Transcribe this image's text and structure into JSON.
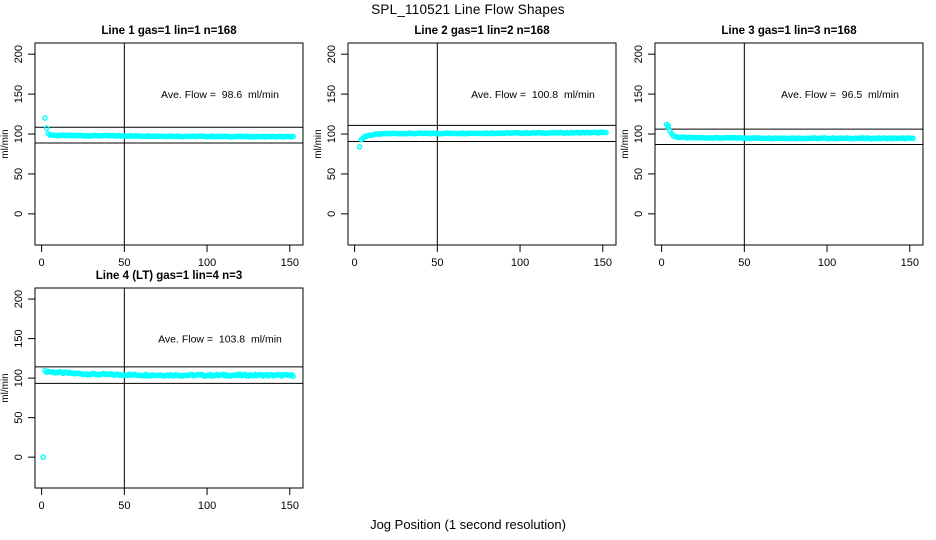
{
  "page": {
    "title": "SPL_110521  Line Flow Shapes",
    "xlabel": "Jog Position (1 second resolution)",
    "background": "#ffffff"
  },
  "colors": {
    "points": "#00ffff",
    "axis": "#000000",
    "text": "#000000"
  },
  "chart_data": [
    {
      "type": "scatter",
      "title": "Line 1 gas=1 lin=1 n=168",
      "annotation": "Ave. Flow =  98.6  ml/min",
      "ave_flow": 98.6,
      "n": 168,
      "ylabel": "ml/min",
      "xlim": [
        -4,
        158
      ],
      "ylim": [
        -39,
        214
      ],
      "xticks": [
        0,
        50,
        100,
        150
      ],
      "yticks": [
        0,
        50,
        100,
        150,
        200
      ],
      "vline_x": 50,
      "hlines": [
        108.5,
        88.7
      ],
      "outliers": [
        [
          2,
          120
        ]
      ],
      "series_keypoints": [
        [
          3,
          107
        ],
        [
          4,
          101
        ],
        [
          5,
          98.8
        ],
        [
          10,
          98.2
        ],
        [
          40,
          97.8
        ],
        [
          80,
          97.2
        ],
        [
          120,
          96.8
        ],
        [
          152,
          96.6
        ]
      ],
      "x_step": 1,
      "jitter": 0.5,
      "marker": "open-circle"
    },
    {
      "type": "scatter",
      "title": "Line 2 gas=1 lin=2 n=168",
      "annotation": "Ave. Flow =  100.8  ml/min",
      "ave_flow": 100.8,
      "n": 168,
      "ylabel": "ml/min",
      "xlim": [
        -4,
        158
      ],
      "ylim": [
        -39,
        214
      ],
      "xticks": [
        0,
        50,
        100,
        150
      ],
      "yticks": [
        0,
        50,
        100,
        150,
        200
      ],
      "vline_x": 50,
      "hlines": [
        110.9,
        90.7
      ],
      "outliers": [
        [
          3,
          84
        ]
      ],
      "series_keypoints": [
        [
          4,
          92.5
        ],
        [
          5,
          95
        ],
        [
          6,
          96.5
        ],
        [
          8,
          98
        ],
        [
          12,
          99.5
        ],
        [
          20,
          100.6
        ],
        [
          60,
          100.9
        ],
        [
          100,
          101.2
        ],
        [
          152,
          101.8
        ]
      ],
      "x_step": 1,
      "jitter": 0.5,
      "marker": "open-circle"
    },
    {
      "type": "scatter",
      "title": "Line 3 gas=1 lin=3 n=168",
      "annotation": "Ave. Flow =  96.5  ml/min",
      "ave_flow": 96.5,
      "n": 168,
      "ylabel": "ml/min",
      "xlim": [
        -4,
        158
      ],
      "ylim": [
        -39,
        214
      ],
      "xticks": [
        0,
        50,
        100,
        150
      ],
      "yticks": [
        0,
        50,
        100,
        150,
        200
      ],
      "vline_x": 50,
      "hlines": [
        106.2,
        86.9
      ],
      "outliers": [
        [
          3,
          112
        ],
        [
          4,
          110.5
        ]
      ],
      "series_keypoints": [
        [
          4,
          108
        ],
        [
          5,
          104
        ],
        [
          6,
          100.5
        ],
        [
          7,
          98
        ],
        [
          9,
          96.2
        ],
        [
          15,
          95.4
        ],
        [
          60,
          94.9
        ],
        [
          100,
          94.6
        ],
        [
          152,
          94.6
        ]
      ],
      "x_step": 1,
      "jitter": 0.5,
      "marker": "open-circle"
    },
    {
      "type": "scatter",
      "title": "Line 4 (LT) gas=1 lin=4 n=3",
      "annotation": "Ave. Flow =  103.8  ml/min",
      "ave_flow": 103.8,
      "n": 3,
      "ylabel": "ml/min",
      "xlim": [
        -4,
        158
      ],
      "ylim": [
        -39,
        214
      ],
      "xticks": [
        0,
        50,
        100,
        150
      ],
      "yticks": [
        0,
        50,
        100,
        150,
        200
      ],
      "vline_x": 50,
      "hlines": [
        114.2,
        93.4
      ],
      "outliers": [
        [
          1,
          0
        ]
      ],
      "series_keypoints": [
        [
          2,
          108.6
        ],
        [
          6,
          107.8
        ],
        [
          12,
          106.8
        ],
        [
          20,
          105.9
        ],
        [
          30,
          105
        ],
        [
          45,
          104.3
        ],
        [
          70,
          103.8
        ],
        [
          100,
          103.6
        ],
        [
          130,
          103.7
        ],
        [
          152,
          103.4
        ]
      ],
      "x_step": 1,
      "jitter": 1.1,
      "marker": "open-circle"
    }
  ]
}
